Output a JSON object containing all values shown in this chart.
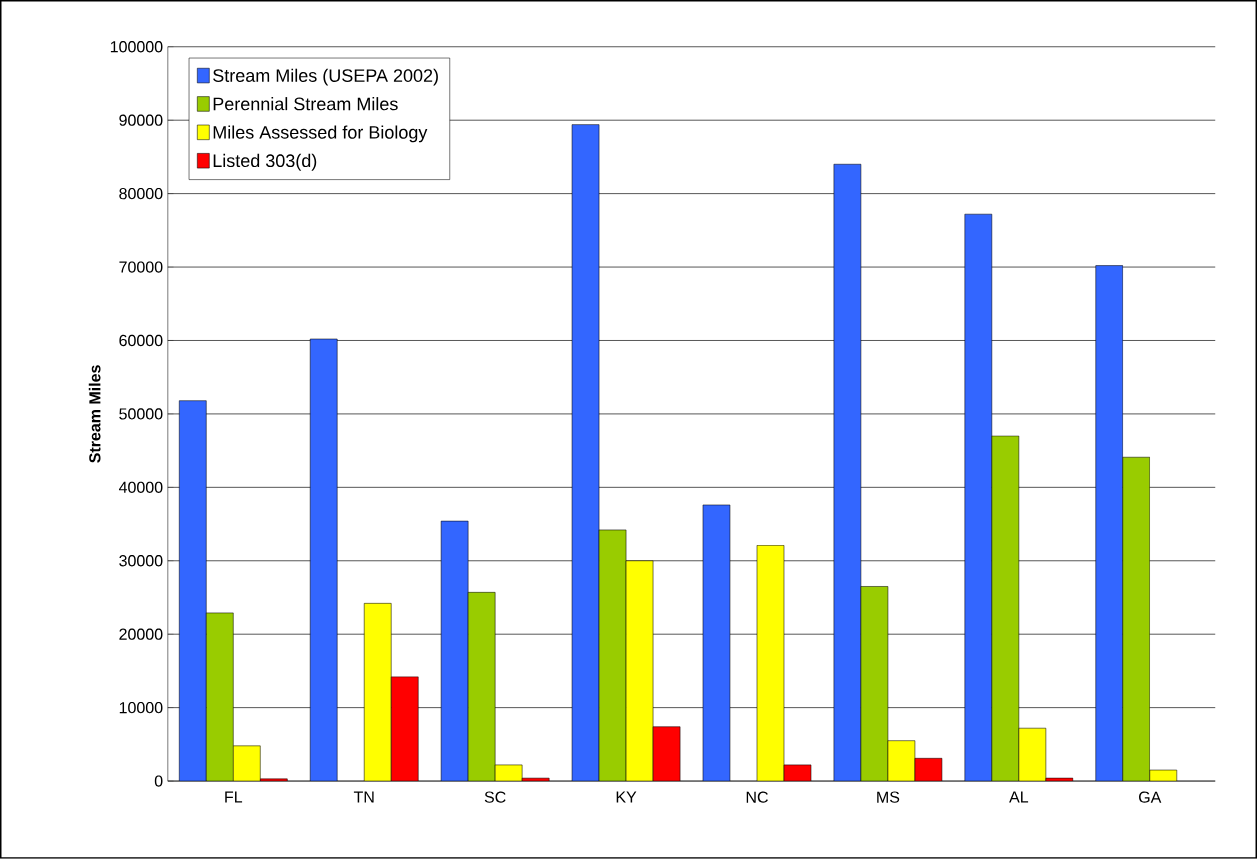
{
  "chart_data": {
    "type": "bar",
    "ylabel": "Stream Miles",
    "categories": [
      "FL",
      "TN",
      "SC",
      "KY",
      "NC",
      "MS",
      "AL",
      "GA"
    ],
    "series": [
      {
        "name": "Stream Miles (USEPA 2002)",
        "color": "#3366ff",
        "values": [
          51800,
          60200,
          35400,
          89400,
          37600,
          84000,
          77200,
          70200
        ]
      },
      {
        "name": "Perennial Stream Miles",
        "color": "#99cc00",
        "values": [
          22900,
          null,
          25700,
          34200,
          null,
          26500,
          47000,
          44100
        ]
      },
      {
        "name": "Miles Assessed for Biology",
        "color": "#ffff00",
        "values": [
          4800,
          24200,
          2200,
          30000,
          32100,
          5500,
          7200,
          1500
        ]
      },
      {
        "name": "Listed 303(d)",
        "color": "#ff0000",
        "values": [
          300,
          14200,
          400,
          7400,
          2200,
          3100,
          400,
          null
        ]
      }
    ],
    "ylim": [
      0,
      100000
    ],
    "yticks": [
      0,
      10000,
      20000,
      30000,
      40000,
      50000,
      60000,
      70000,
      80000,
      90000,
      100000
    ],
    "grid": "y",
    "legend": "top left"
  }
}
